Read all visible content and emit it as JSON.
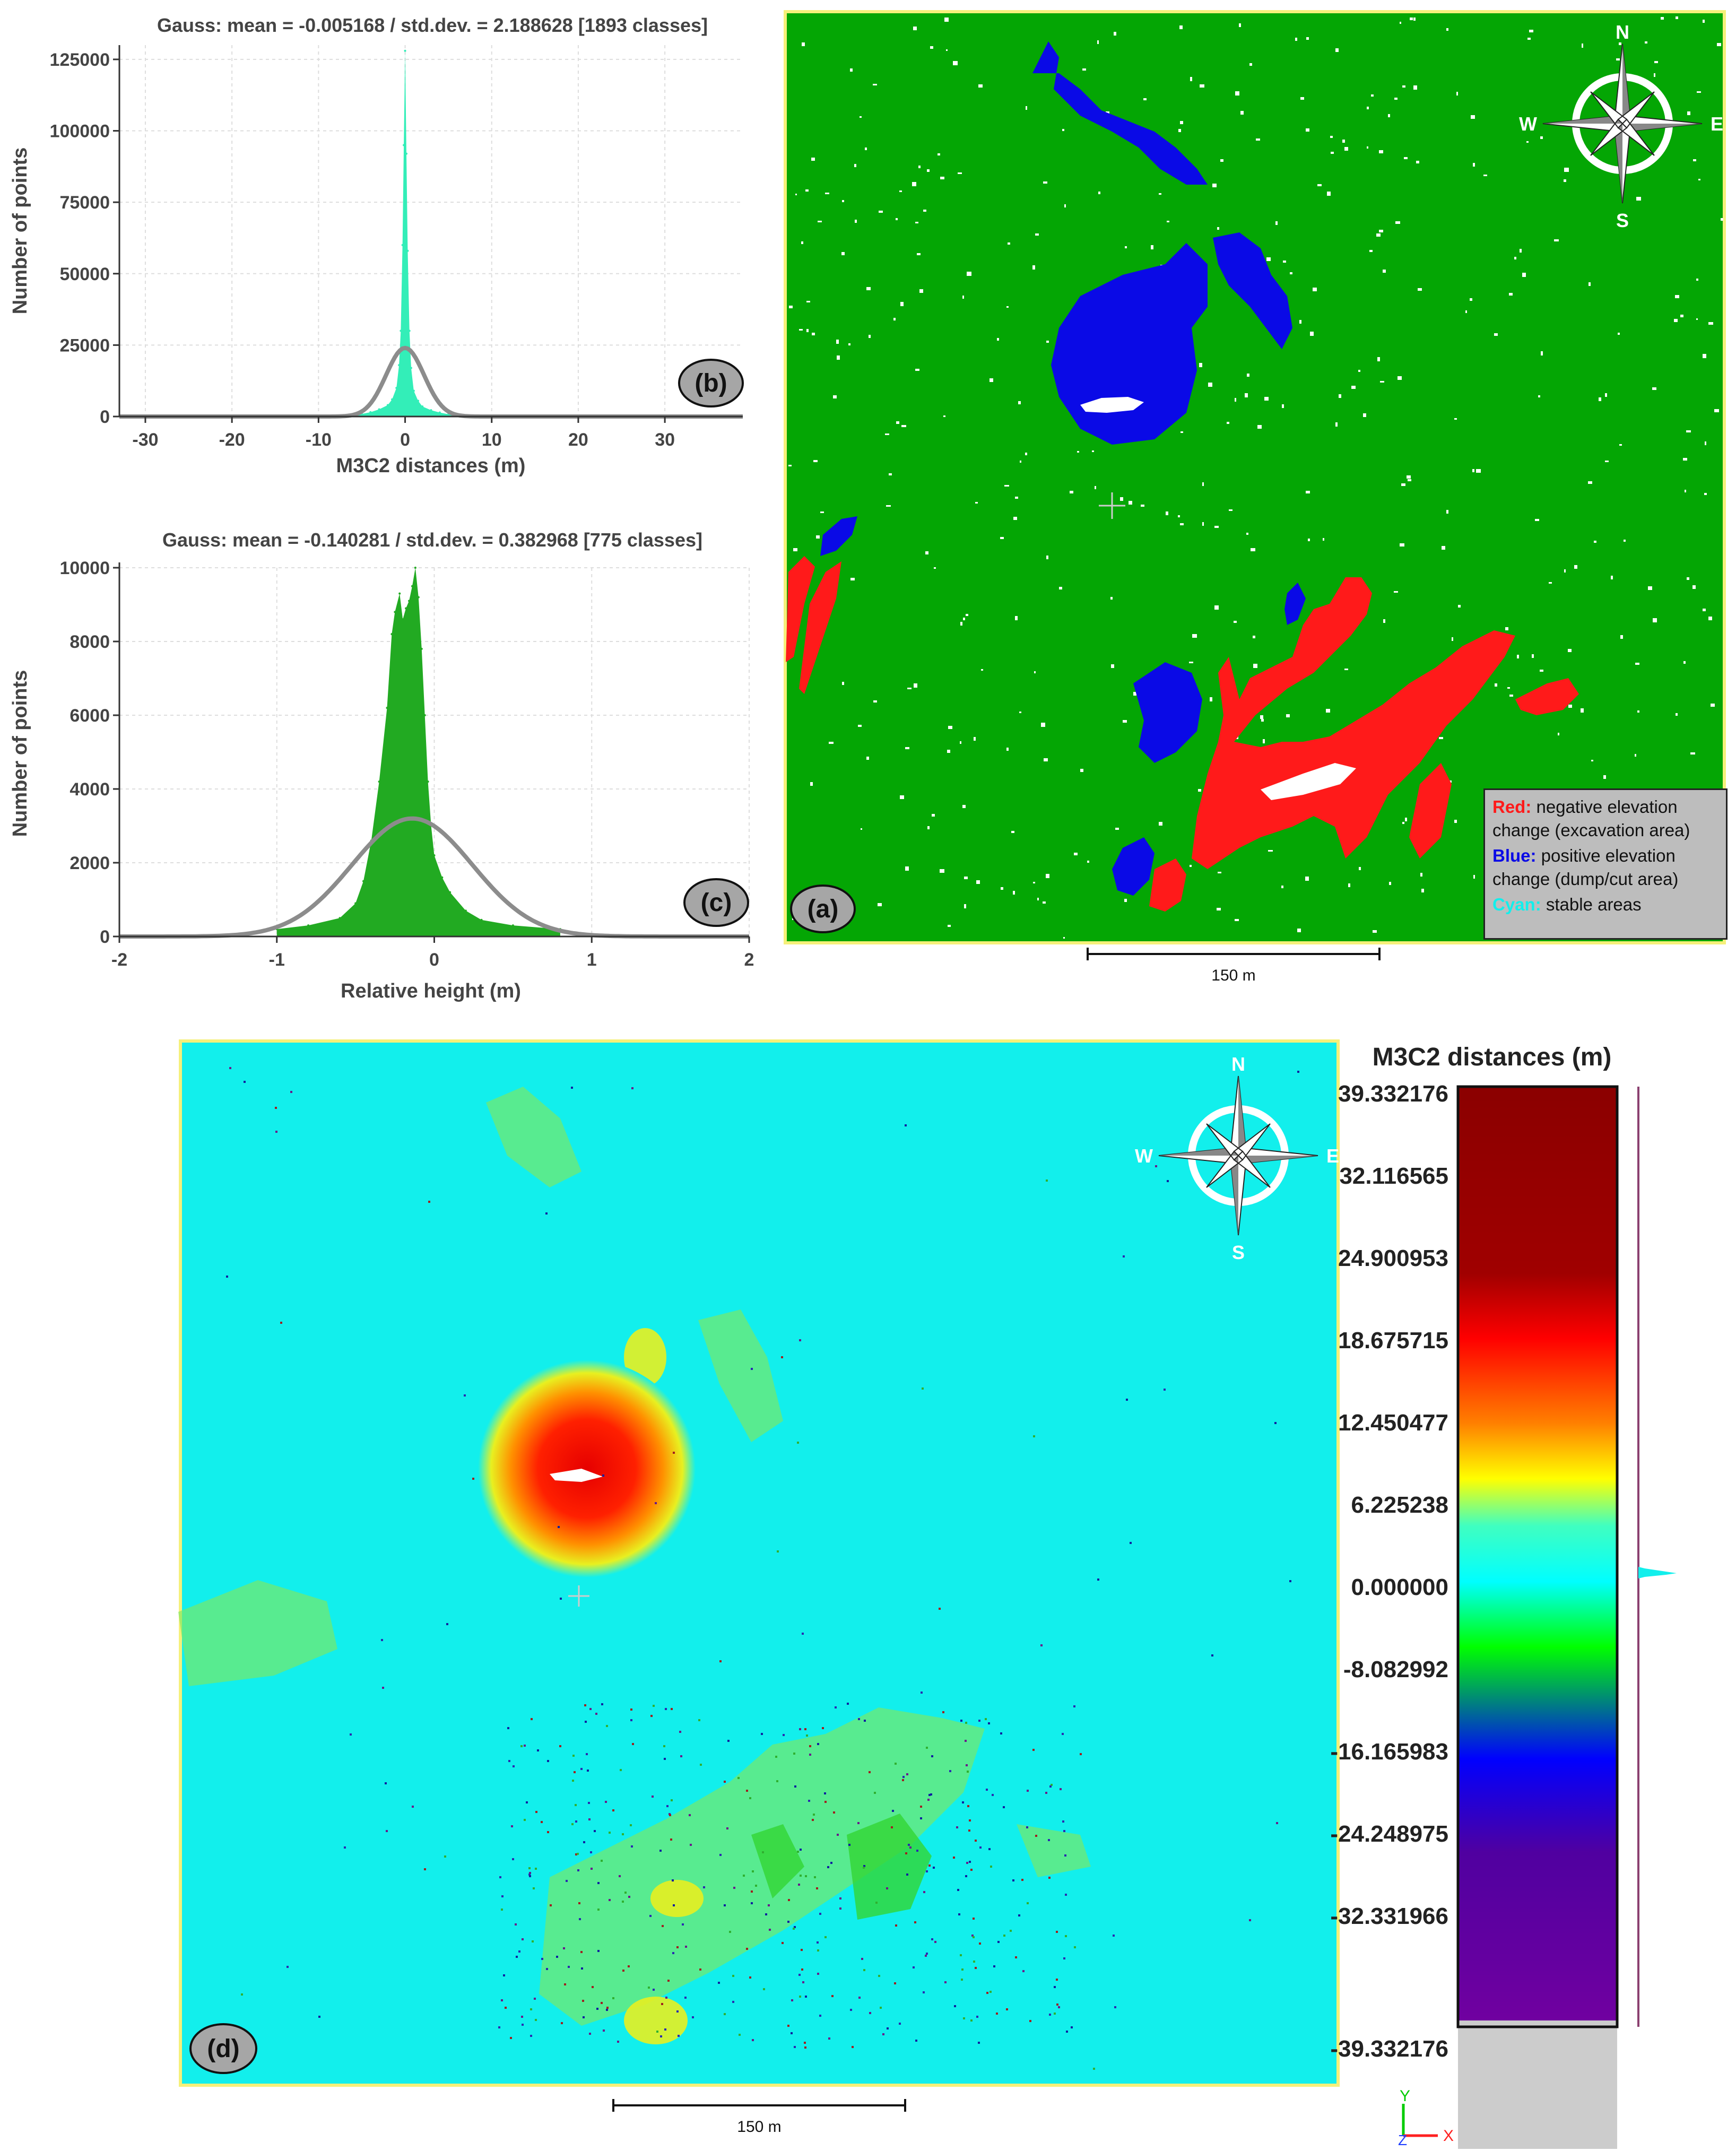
{
  "panel_b": {
    "badge": "(b)",
    "colors": {
      "bars": "#33eeb8",
      "gauss": "#8c8c8c"
    }
  },
  "panel_c": {
    "badge": "(c)",
    "colors": {
      "bars": "#22aa22",
      "gauss": "#8c8c8c"
    }
  },
  "panel_a": {
    "badge": "(a)",
    "scale_label": "150 m",
    "compass": {
      "n": "N",
      "s": "S",
      "e": "E",
      "w": "W"
    },
    "legend": {
      "red_key": "Red:",
      "red_text": "negative elevation change (excavation area)",
      "blue_key": "Blue:",
      "blue_text": "positive elevation change (dump/cut area)",
      "cyan_key": "Cyan:",
      "cyan_text": "stable areas"
    },
    "colors": {
      "ground": "#04a604",
      "red": "#ff1a1a",
      "blue": "#0a0ae6",
      "frame": "#f5f07a"
    }
  },
  "panel_d": {
    "badge": "(d)",
    "scale_label": "150 m",
    "compass": {
      "n": "N",
      "s": "S",
      "e": "E",
      "w": "W"
    },
    "colorbar": {
      "title": "M3C2 distances (m)",
      "labels": [
        "39.332176",
        "32.116565",
        "24.900953",
        "18.675715",
        "12.450477",
        "6.225238",
        "0.000000",
        "-8.082992",
        "-16.165983",
        "-24.248975",
        "-32.331966",
        "-39.332176"
      ]
    },
    "axes_triad": {
      "y": "Y",
      "z": "Z",
      "x": "X"
    },
    "colors": {
      "ground": "#12efec",
      "frame": "#f5f07a"
    }
  },
  "chart_data": [
    {
      "type": "bar",
      "id": "histogram-b",
      "title": "Gauss: mean = -0.005168 / std.dev. = 2.188628 [1893 classes]",
      "xlabel": "M3C2 distances (m)",
      "ylabel": "Number of points",
      "xlim": [
        -33,
        39
      ],
      "ylim": [
        0,
        130000
      ],
      "xticks": [
        -30,
        -20,
        -10,
        0,
        10,
        20,
        30
      ],
      "yticks": [
        0,
        25000,
        50000,
        75000,
        100000,
        125000
      ],
      "gauss": {
        "mean": -0.005168,
        "std": 2.188628,
        "peak": 24000
      },
      "x": [
        -8,
        -6,
        -5,
        -4,
        -3,
        -2,
        -1.5,
        -1,
        -0.7,
        -0.5,
        -0.3,
        -0.15,
        0,
        0.15,
        0.3,
        0.5,
        0.7,
        1,
        1.5,
        2,
        3,
        4,
        5,
        6,
        8
      ],
      "values": [
        200,
        500,
        900,
        1500,
        2500,
        4000,
        6000,
        10000,
        18000,
        30000,
        60000,
        95000,
        128000,
        92000,
        58000,
        30000,
        17000,
        9000,
        5500,
        3500,
        2200,
        1400,
        800,
        400,
        150
      ]
    },
    {
      "type": "bar",
      "id": "histogram-c",
      "title": "Gauss: mean = -0.140281 / std.dev. = 0.382968 [775 classes]",
      "xlabel": "Relative height (m)",
      "ylabel": "Number of points",
      "xlim": [
        -2,
        2
      ],
      "ylim": [
        0,
        10000
      ],
      "xticks": [
        -2,
        -1,
        0,
        1,
        2
      ],
      "yticks": [
        0,
        2000,
        4000,
        6000,
        8000,
        10000
      ],
      "gauss": {
        "mean": -0.140281,
        "std": 0.382968,
        "peak": 3200
      },
      "x": [
        -1.0,
        -0.8,
        -0.6,
        -0.5,
        -0.45,
        -0.4,
        -0.35,
        -0.3,
        -0.27,
        -0.25,
        -0.22,
        -0.2,
        -0.18,
        -0.16,
        -0.14,
        -0.12,
        -0.1,
        -0.08,
        -0.06,
        -0.04,
        -0.02,
        0.0,
        0.05,
        0.1,
        0.2,
        0.3,
        0.5,
        0.8
      ],
      "values": [
        200,
        300,
        500,
        900,
        1500,
        2600,
        4200,
        6200,
        8200,
        8800,
        9300,
        8600,
        8900,
        9100,
        9500,
        10000,
        9200,
        7800,
        6000,
        4200,
        3000,
        2200,
        1600,
        1200,
        700,
        450,
        300,
        200
      ]
    }
  ]
}
